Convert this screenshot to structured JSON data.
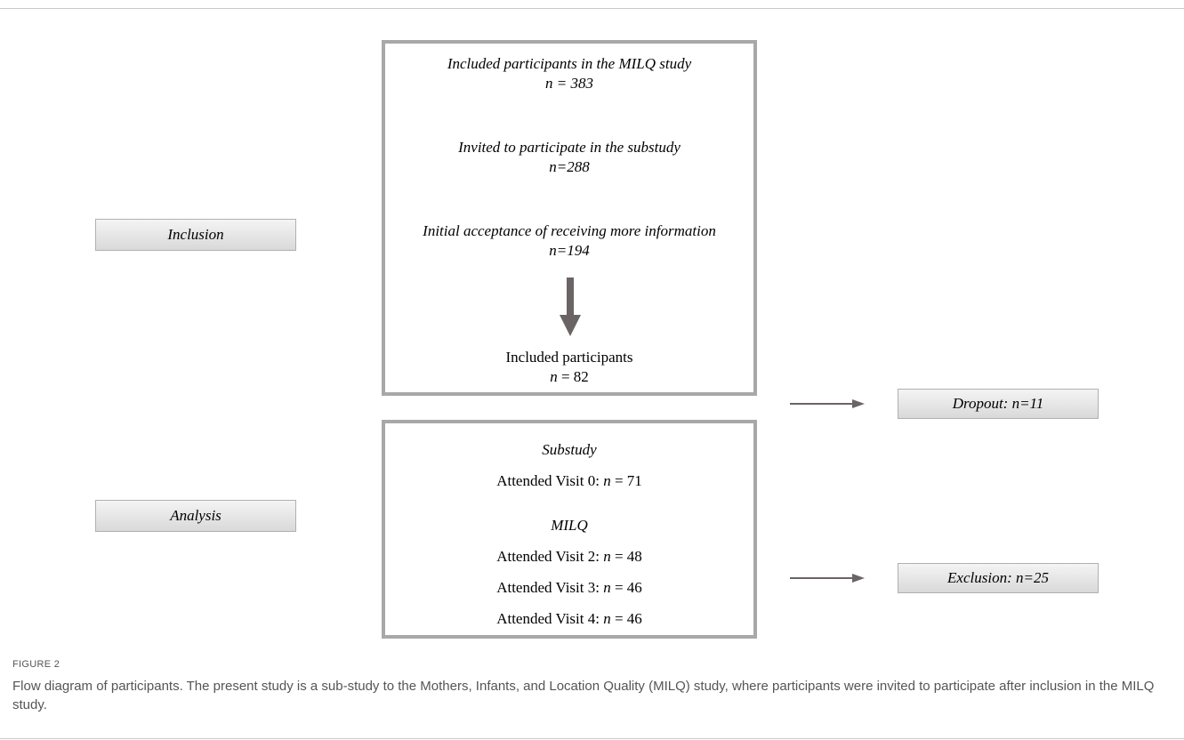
{
  "stages": {
    "inclusion": "Inclusion",
    "analysis": "Analysis"
  },
  "inclusion_box": {
    "line1": "Included participants in the MILQ study",
    "line1_n": "n = 383",
    "line2": "Invited to participate in the substudy",
    "line2_n": "n=288",
    "line3": "Initial acceptance of receiving more information",
    "line3_n": "n=194",
    "final_label": "Included participants",
    "final_n_symbol": "n",
    "final_n_value": " = 82"
  },
  "analysis_box": {
    "substudy_heading": "Substudy",
    "visit0_label": "Attended Visit 0: ",
    "visit0_n_symbol": "n",
    "visit0_n_value": " = 71",
    "milq_heading": "MILQ",
    "visit2_label": "Attended Visit 2: ",
    "visit2_n_symbol": "n",
    "visit2_n_value": " = 48",
    "visit3_label": "Attended Visit 3: ",
    "visit3_n_symbol": "n",
    "visit3_n_value": " = 46",
    "visit4_label": "Attended Visit 4: ",
    "visit4_n_symbol": "n",
    "visit4_n_value": " = 46"
  },
  "side_boxes": {
    "dropout": "Dropout: n=11",
    "exclusion": "Exclusion: n=25"
  },
  "caption": {
    "label": "FIGURE 2",
    "text": "Flow diagram of participants. The present study is a sub-study to the Mothers, Infants, and Location Quality (MILQ) study, where participants were invited to participate after inclusion in the MILQ study."
  },
  "colors": {
    "box_border": "#a8a8a8",
    "arrow": "#6b6464",
    "label_fill_top": "#f4f4f4",
    "label_fill_bottom": "#d9d9d9",
    "caption_text": "#555555"
  }
}
